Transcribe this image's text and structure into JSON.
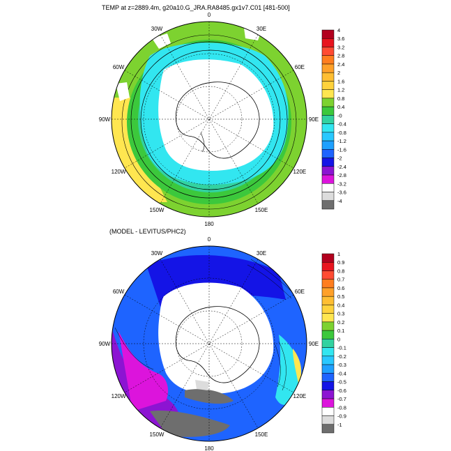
{
  "panels": [
    {
      "id": "top",
      "title": "TEMP at z=2889.4m, g20a10.G_JRA.RA8485.gx1v7.C01 [481-500]",
      "lon_labels": [
        "0",
        "30E",
        "60E",
        "90E",
        "120E",
        "150E",
        "180",
        "150W",
        "120W",
        "90W",
        "60W",
        "30W"
      ],
      "colorbar": {
        "labels": [
          "4",
          "3.6",
          "3.2",
          "2.8",
          "2.4",
          "2",
          "1.6",
          "1.2",
          "0.8",
          "0.4",
          "-0",
          "-0.4",
          "-0.8",
          "-1.2",
          "-1.6",
          "-2",
          "-2.4",
          "-2.8",
          "-3.2",
          "-3.6",
          "-4"
        ],
        "colors": [
          "#b2001e",
          "#e8141e",
          "#ff4b32",
          "#ff7d1e",
          "#ffa028",
          "#ffbe32",
          "#ffd23c",
          "#ffe650",
          "#7dd230",
          "#3cc83c",
          "#32d2a0",
          "#32e6f0",
          "#28c8ff",
          "#1ea0ff",
          "#1e64ff",
          "#1414e6",
          "#8c14d2",
          "#dc14dc",
          "#ffffff",
          "#dcdcdc",
          "#6e6e6e"
        ]
      }
    },
    {
      "id": "bottom",
      "title": "(MODEL - LEVITUS/PHC2)",
      "lon_labels": [
        "0",
        "30E",
        "60E",
        "90E",
        "120E",
        "150E",
        "180",
        "150W",
        "120W",
        "90W",
        "60W",
        "30W"
      ],
      "colorbar": {
        "labels": [
          "1",
          "0.9",
          "0.8",
          "0.7",
          "0.6",
          "0.5",
          "0.4",
          "0.3",
          "0.2",
          "0.1",
          "0",
          "-0.1",
          "-0.2",
          "-0.3",
          "-0.4",
          "-0.5",
          "-0.6",
          "-0.7",
          "-0.8",
          "-0.9",
          "-1"
        ],
        "colors": [
          "#b2001e",
          "#e8141e",
          "#ff4b32",
          "#ff7d1e",
          "#ffa028",
          "#ffbe32",
          "#ffd23c",
          "#ffe650",
          "#7dd230",
          "#3cc83c",
          "#32d2a0",
          "#32e6f0",
          "#28c8ff",
          "#1ea0ff",
          "#1e64ff",
          "#1414e6",
          "#8c14d2",
          "#dc14dc",
          "#ffffff",
          "#dcdcdc",
          "#6e6e6e"
        ]
      }
    }
  ]
}
